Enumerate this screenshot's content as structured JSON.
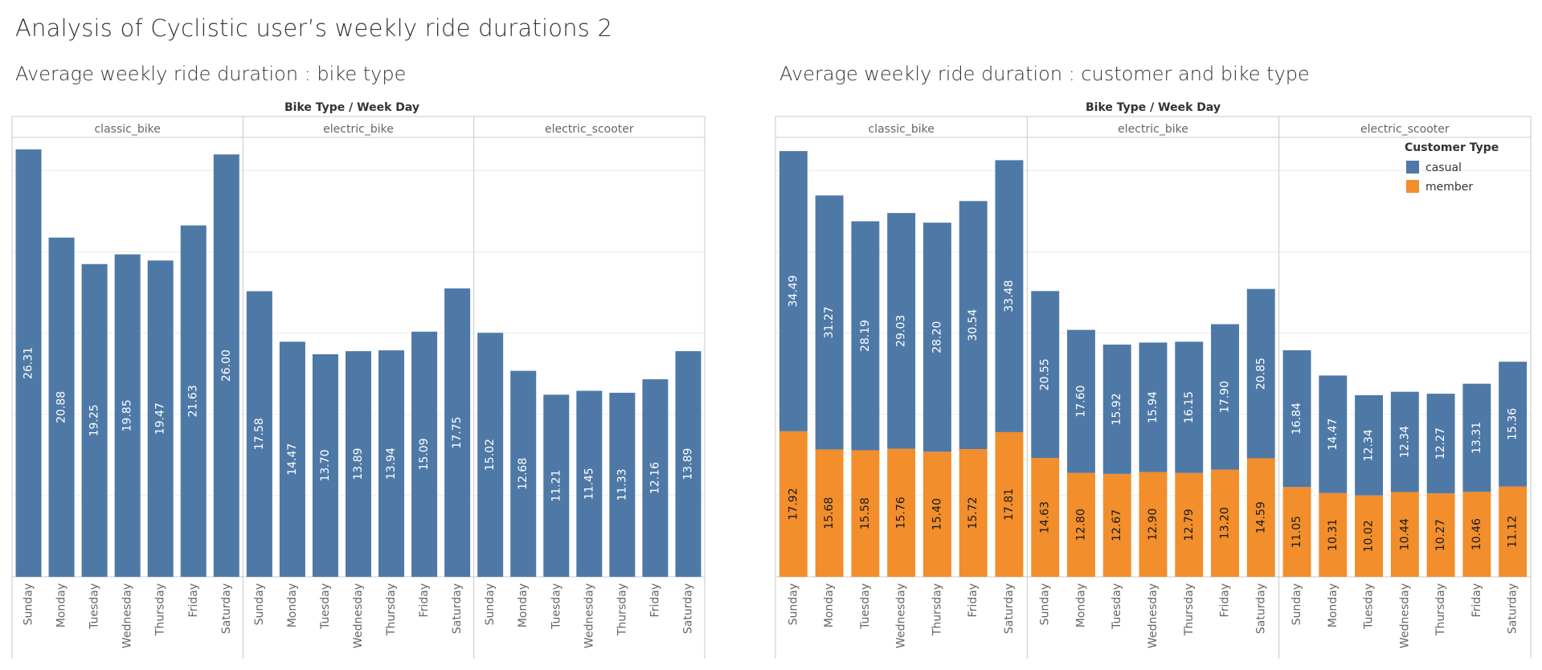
{
  "dashboard_title": "Analysis of Cyclistic user’s weekly ride durations 2",
  "colors": {
    "casual": "#4e79a7",
    "member": "#f28e2b",
    "grid": "#ececec",
    "divider": "#c8c8c8"
  },
  "chart_data": [
    {
      "type": "bar",
      "title": "Average weekly ride duration  : bike type",
      "header": "Bike Type  /  Week Day",
      "panes": [
        "classic_bike",
        "electric_bike",
        "electric_scooter"
      ],
      "categories": [
        "Sunday",
        "Monday",
        "Tuesday",
        "Wednesday",
        "Thursday",
        "Friday",
        "Saturday"
      ],
      "ylim": [
        0,
        27
      ],
      "series": [
        {
          "values": [
            [
              26.31,
              20.88,
              19.25,
              19.85,
              19.47,
              21.63,
              26.0
            ],
            [
              17.58,
              14.47,
              13.7,
              13.89,
              13.94,
              15.09,
              17.75
            ],
            [
              15.02,
              12.68,
              11.21,
              11.45,
              11.33,
              12.16,
              13.89
            ]
          ]
        }
      ]
    },
    {
      "type": "bar",
      "stacked": true,
      "title": "Average weekly ride duration  : customer and bike type",
      "header": "Bike Type  /  Week Day",
      "panes": [
        "classic_bike",
        "electric_bike",
        "electric_scooter"
      ],
      "categories": [
        "Sunday",
        "Monday",
        "Tuesday",
        "Wednesday",
        "Thursday",
        "Friday",
        "Saturday"
      ],
      "ylim": [
        0,
        54
      ],
      "legend": {
        "title": "Customer Type",
        "position": "top-right"
      },
      "series": [
        {
          "name": "member",
          "values": [
            [
              17.92,
              15.68,
              15.58,
              15.76,
              15.4,
              15.72,
              17.81
            ],
            [
              14.63,
              12.8,
              12.67,
              12.9,
              12.79,
              13.2,
              14.59
            ],
            [
              11.05,
              10.31,
              10.02,
              10.44,
              10.27,
              10.46,
              11.12
            ]
          ]
        },
        {
          "name": "casual",
          "values": [
            [
              34.49,
              31.27,
              28.19,
              29.03,
              28.2,
              30.54,
              33.48
            ],
            [
              20.55,
              17.6,
              15.92,
              15.94,
              16.15,
              17.9,
              20.85
            ],
            [
              16.84,
              14.47,
              12.34,
              12.34,
              12.27,
              13.31,
              15.36
            ]
          ]
        }
      ]
    }
  ]
}
